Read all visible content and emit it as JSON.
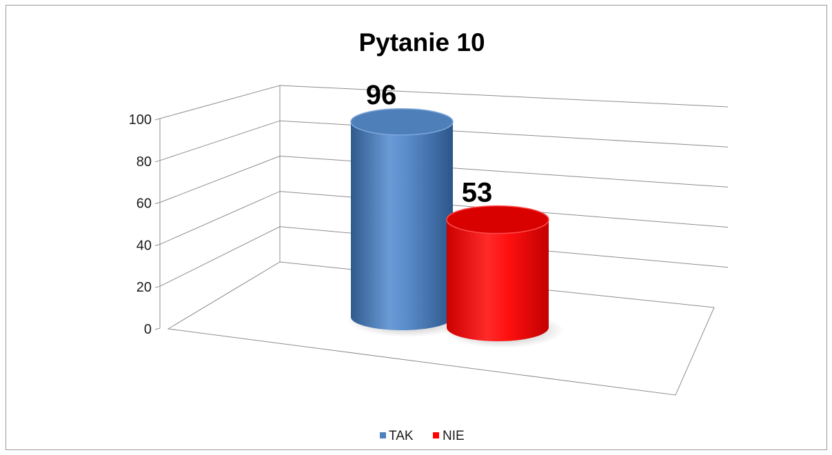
{
  "chart_data": {
    "type": "bar",
    "style": "3d-cylinder",
    "title": "Pytanie 10",
    "xlabel": "",
    "ylabel": "",
    "categories": [
      ""
    ],
    "series": [
      {
        "name": "TAK",
        "values": [
          96
        ],
        "color": "#4f81bd"
      },
      {
        "name": "NIE",
        "values": [
          53
        ],
        "color": "#ff0000"
      }
    ],
    "ylim": [
      0,
      100
    ],
    "yticks": [
      "0",
      "20",
      "40",
      "60",
      "80",
      "100"
    ],
    "data_labels": [
      "96",
      "53"
    ],
    "grid": true,
    "legend_position": "bottom"
  }
}
